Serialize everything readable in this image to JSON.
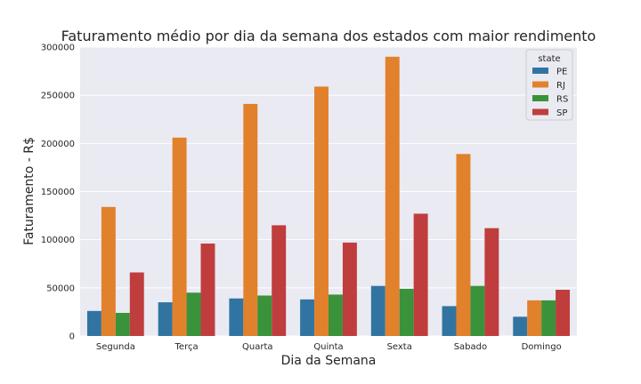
{
  "chart_data": {
    "type": "bar",
    "title": "Faturamento médio por dia da semana dos estados com maior rendimento",
    "xlabel": "Dia da Semana",
    "ylabel": "Faturamento - R$",
    "categories": [
      "Segunda",
      "Terça",
      "Quarta",
      "Quinta",
      "Sexta",
      "Sabado",
      "Domingo"
    ],
    "ylim": [
      0,
      300000
    ],
    "yticks": [
      0,
      50000,
      100000,
      150000,
      200000,
      250000,
      300000
    ],
    "grid": true,
    "legend": {
      "title": "state",
      "position": "top-right"
    },
    "series": [
      {
        "name": "PE",
        "color": "#3274a1",
        "values": [
          26000,
          35000,
          39000,
          38000,
          52000,
          31000,
          20000
        ]
      },
      {
        "name": "RJ",
        "color": "#e1812c",
        "values": [
          134000,
          206000,
          241000,
          259000,
          290000,
          189000,
          37000
        ]
      },
      {
        "name": "RS",
        "color": "#3a923a",
        "values": [
          24000,
          45000,
          42000,
          43000,
          49000,
          52000,
          37000
        ]
      },
      {
        "name": "SP",
        "color": "#c03d3e",
        "values": [
          66000,
          96000,
          115000,
          97000,
          127000,
          112000,
          48000
        ]
      }
    ]
  }
}
